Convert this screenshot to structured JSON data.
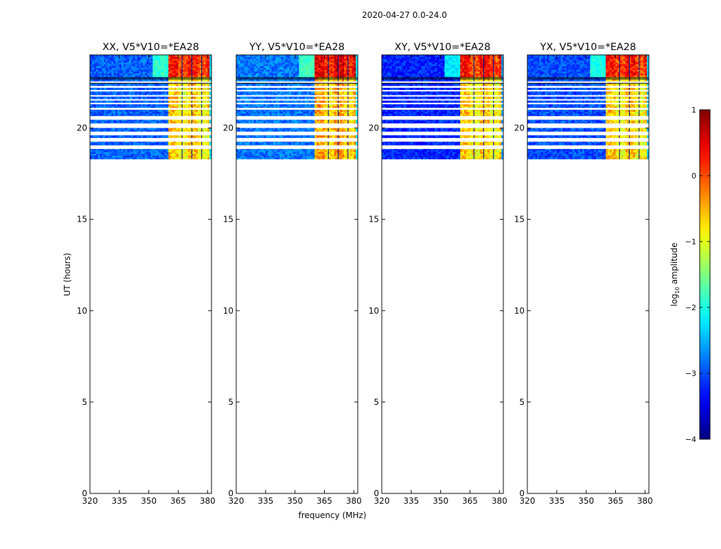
{
  "figure": {
    "suptitle": "2020-04-27 0.0-24.0",
    "xlabel": "frequency (MHz)",
    "ylabel": "UT (hours)"
  },
  "colorbar": {
    "label_prefix": "log",
    "label_sub": "10",
    "label_suffix": " amplitude",
    "range": [
      -4,
      1
    ],
    "ticks": [
      1,
      0,
      -1,
      -2,
      -3,
      -4
    ],
    "tick_labels": [
      "1",
      "0",
      "−1",
      "−2",
      "−3",
      "−4"
    ],
    "colormap": "jet"
  },
  "chart_data": [
    {
      "type": "heatmap",
      "title": "XX, V5*V10=*EA28",
      "xlim": [
        320,
        382
      ],
      "ylim": [
        0,
        24
      ],
      "xticks": [
        320,
        335,
        350,
        365,
        380
      ],
      "xtick_labels": [
        "320",
        "335",
        "350",
        "365",
        "380"
      ],
      "yticks": [
        0,
        5,
        10,
        15,
        20
      ],
      "ytick_labels": [
        "0",
        "5",
        "10",
        "15",
        "20"
      ],
      "data_ut_range": [
        18.3,
        24.0
      ],
      "rfi_band_mhz": [
        360.5,
        380.5
      ],
      "rfi_level": 0.1,
      "background_level": -2.9,
      "gap_rows_ut": [
        [
          18.85,
          19.05
        ],
        [
          19.25,
          19.45
        ],
        [
          19.6,
          19.8
        ],
        [
          20.0,
          20.25
        ],
        [
          20.45,
          20.65
        ],
        [
          21.0,
          21.1
        ],
        [
          21.3,
          21.38
        ],
        [
          21.5,
          21.58
        ],
        [
          21.72,
          21.8
        ],
        [
          22.0,
          22.08
        ],
        [
          22.2,
          22.3
        ],
        [
          22.45,
          22.55
        ]
      ],
      "black_lines_ut": [
        22.45,
        22.68,
        22.75
      ]
    },
    {
      "type": "heatmap",
      "title": "YY, V5*V10=*EA28",
      "xlim": [
        320,
        382
      ],
      "ylim": [
        0,
        24
      ],
      "xticks": [
        320,
        335,
        350,
        365,
        380
      ],
      "xtick_labels": [
        "320",
        "335",
        "350",
        "365",
        "380"
      ],
      "yticks": [
        0,
        5,
        10,
        15,
        20
      ],
      "ytick_labels": [
        "0",
        "5",
        "10",
        "15",
        "20"
      ],
      "data_ut_range": [
        18.3,
        24.0
      ],
      "rfi_band_mhz": [
        360.5,
        380.5
      ],
      "rfi_level": 0.3,
      "background_level": -2.8,
      "gap_rows_ut": [
        [
          18.85,
          19.05
        ],
        [
          19.25,
          19.45
        ],
        [
          19.6,
          19.8
        ],
        [
          20.0,
          20.25
        ],
        [
          20.45,
          20.65
        ],
        [
          21.0,
          21.1
        ],
        [
          21.3,
          21.38
        ],
        [
          21.5,
          21.58
        ],
        [
          21.72,
          21.8
        ],
        [
          22.0,
          22.08
        ],
        [
          22.2,
          22.3
        ],
        [
          22.45,
          22.55
        ]
      ],
      "black_lines_ut": [
        22.45,
        22.68,
        22.75
      ]
    },
    {
      "type": "heatmap",
      "title": "XY, V5*V10=*EA28",
      "xlim": [
        320,
        382
      ],
      "ylim": [
        0,
        24
      ],
      "xticks": [
        320,
        335,
        350,
        365,
        380
      ],
      "xtick_labels": [
        "320",
        "335",
        "350",
        "365",
        "380"
      ],
      "yticks": [
        0,
        5,
        10,
        15,
        20
      ],
      "ytick_labels": [
        "0",
        "5",
        "10",
        "15",
        "20"
      ],
      "data_ut_range": [
        18.3,
        24.0
      ],
      "rfi_band_mhz": [
        360.5,
        380.5
      ],
      "rfi_level": 0.1,
      "background_level": -3.2,
      "gap_rows_ut": [
        [
          18.85,
          19.05
        ],
        [
          19.25,
          19.45
        ],
        [
          19.6,
          19.8
        ],
        [
          20.0,
          20.25
        ],
        [
          20.45,
          20.65
        ],
        [
          21.0,
          21.1
        ],
        [
          21.3,
          21.38
        ],
        [
          21.5,
          21.58
        ],
        [
          21.72,
          21.8
        ],
        [
          22.0,
          22.08
        ],
        [
          22.2,
          22.3
        ],
        [
          22.45,
          22.55
        ]
      ],
      "black_lines_ut": [
        22.45,
        22.68,
        22.75
      ]
    },
    {
      "type": "heatmap",
      "title": "YX, V5*V10=*EA28",
      "xlim": [
        320,
        382
      ],
      "ylim": [
        0,
        24
      ],
      "xticks": [
        320,
        335,
        350,
        365,
        380
      ],
      "xtick_labels": [
        "320",
        "335",
        "350",
        "365",
        "380"
      ],
      "yticks": [
        0,
        5,
        10,
        15,
        20
      ],
      "ytick_labels": [
        "0",
        "5",
        "10",
        "15",
        "20"
      ],
      "data_ut_range": [
        18.3,
        24.0
      ],
      "rfi_band_mhz": [
        360.5,
        380.5
      ],
      "rfi_level": 0.1,
      "background_level": -3.0,
      "gap_rows_ut": [
        [
          18.85,
          19.05
        ],
        [
          19.25,
          19.45
        ],
        [
          19.6,
          19.8
        ],
        [
          20.0,
          20.25
        ],
        [
          20.45,
          20.65
        ],
        [
          21.0,
          21.1
        ],
        [
          21.3,
          21.38
        ],
        [
          21.5,
          21.58
        ],
        [
          21.72,
          21.8
        ],
        [
          22.0,
          22.08
        ],
        [
          22.2,
          22.3
        ],
        [
          22.45,
          22.55
        ]
      ],
      "black_lines_ut": [
        22.45,
        22.68,
        22.75
      ]
    }
  ]
}
